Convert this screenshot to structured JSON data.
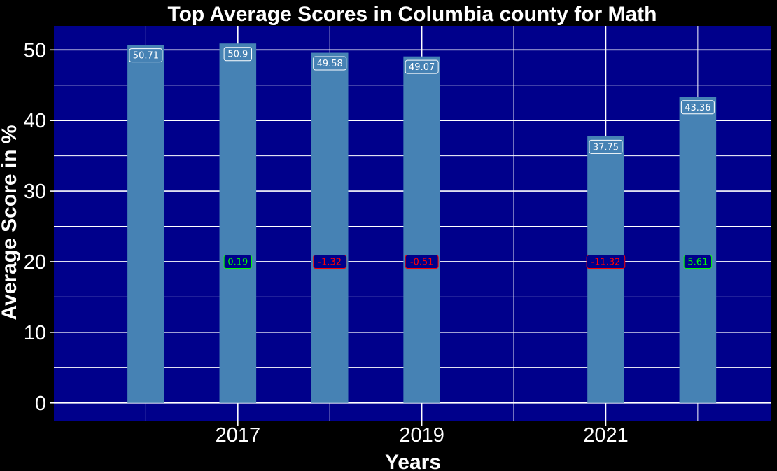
{
  "chart_data": {
    "type": "bar",
    "title": "Top Average Scores in Columbia county for Math",
    "xlabel": "Years",
    "ylabel": "Average Score in %",
    "x": [
      2016,
      2017,
      2018,
      2019,
      2021,
      2022
    ],
    "values": [
      50.71,
      50.9,
      49.58,
      49.07,
      37.75,
      43.36
    ],
    "value_labels": [
      "50.71",
      "50.9",
      "49.58",
      "49.07",
      "37.75",
      "43.36"
    ],
    "changes": [
      null,
      0.19,
      -1.32,
      -0.51,
      -11.32,
      5.61
    ],
    "change_labels": [
      "",
      "0.19",
      "-1.32",
      "-0.51",
      "-11.32",
      "5.61"
    ],
    "change_label_y": 20,
    "x_ticks": [
      "2017",
      "2019",
      "2021"
    ],
    "x_tick_values": [
      2017,
      2019,
      2021
    ],
    "y_ticks": [
      "0",
      "10",
      "20",
      "30",
      "40",
      "50"
    ],
    "xlim": [
      2015.0,
      2022.8
    ],
    "ylim": [
      -2.6,
      53.4
    ],
    "grid": true,
    "colors": {
      "background": "#000000",
      "panel": "#00008B",
      "bar": "#4682B4",
      "grid": "#FFFFFF",
      "positive_change": "#00FF00",
      "negative_change": "#FF0000",
      "change_box": "#00008B",
      "text": "#FFFFFF"
    }
  }
}
